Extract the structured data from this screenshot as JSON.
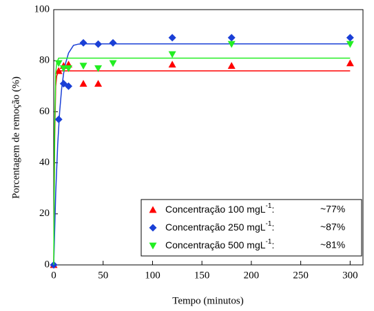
{
  "chart_data": {
    "type": "scatter",
    "x_label": "Tempo (minutos)",
    "y_label": "Porcentagem de remoção (%)",
    "xlim": [
      0,
      313
    ],
    "ylim": [
      0,
      100
    ],
    "xticks": [
      0,
      50,
      100,
      150,
      200,
      250,
      300
    ],
    "yticks": [
      0,
      20,
      40,
      60,
      80,
      100
    ],
    "series": [
      {
        "name": "Concentração 100 mgL",
        "name_sup": "-1",
        "name_suffix": ":",
        "note": "~77%",
        "color": "#ff0000",
        "marker": "triangle-up",
        "x": [
          0,
          5,
          10,
          15,
          30,
          45,
          120,
          180,
          300
        ],
        "values": [
          0,
          76,
          78,
          78.5,
          71,
          71,
          78.5,
          78,
          79
        ],
        "fit": {
          "x": [
            0,
            1,
            2,
            3,
            5,
            300
          ],
          "values": [
            0,
            50,
            70,
            74,
            76,
            76
          ]
        }
      },
      {
        "name": "Concentração 250 mgL",
        "name_sup": "-1",
        "name_suffix": ":",
        "note": "~87%",
        "color": "#1a3fd6",
        "marker": "diamond",
        "x": [
          0,
          5,
          10,
          15,
          30,
          45,
          60,
          120,
          180,
          300
        ],
        "values": [
          0,
          57,
          71,
          70,
          87,
          86.5,
          87,
          89,
          89,
          89
        ],
        "fit": {
          "x": [
            0,
            2,
            4,
            6,
            8,
            10,
            12,
            15,
            20,
            25,
            30,
            300
          ],
          "values": [
            0,
            28,
            47,
            60,
            69,
            75,
            79,
            83,
            86,
            86.5,
            86.6,
            86.6
          ]
        }
      },
      {
        "name": "Concentração 500 mgL",
        "name_sup": "-1",
        "name_suffix": ":",
        "note": "~81%",
        "color": "#22ee22",
        "marker": "triangle-down",
        "x": [
          5,
          10,
          15,
          30,
          45,
          60,
          120,
          180,
          300
        ],
        "values": [
          79,
          77,
          77,
          78,
          77,
          79,
          82.5,
          86.5,
          86.5
        ],
        "fit": {
          "x": [
            0,
            1,
            2,
            3,
            5,
            300
          ],
          "values": [
            0,
            55,
            75,
            79,
            81,
            81
          ]
        }
      }
    ]
  }
}
